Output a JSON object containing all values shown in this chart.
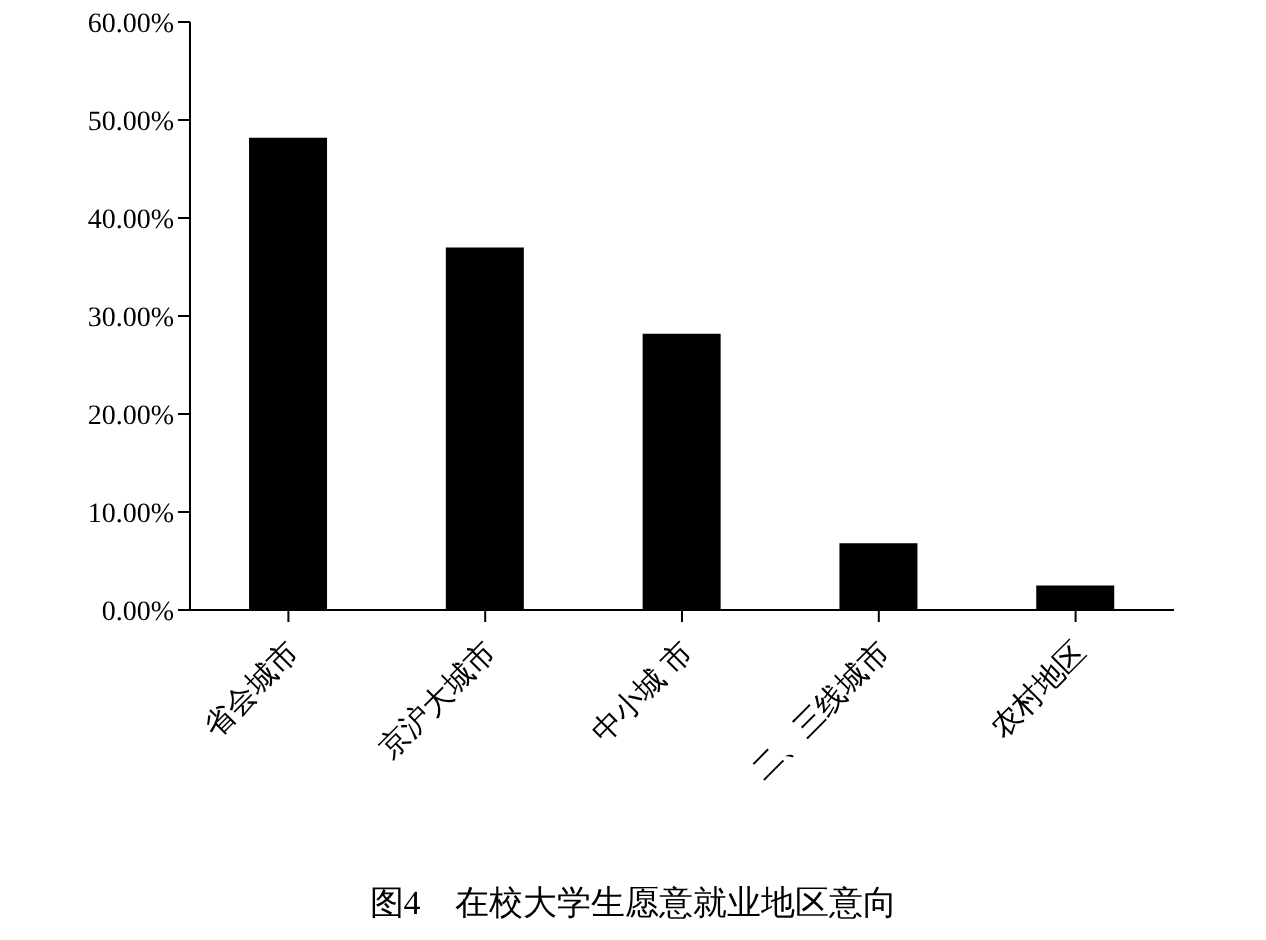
{
  "chart_data": {
    "type": "bar",
    "title": "图4　在校大学生愿意就业地区意向",
    "categories": [
      "省会城市",
      "京沪大城市",
      "中小城 市",
      "二、三线城市",
      "农村地区"
    ],
    "values": [
      48.2,
      37.0,
      28.2,
      6.8,
      2.5
    ],
    "color": "#000000",
    "ylim": [
      0,
      60
    ],
    "yticks": [
      {
        "value": 0,
        "label": "0.00%"
      },
      {
        "value": 10,
        "label": "10.00%"
      },
      {
        "value": 20,
        "label": "20.00%"
      },
      {
        "value": 30,
        "label": "30.00%"
      },
      {
        "value": 40,
        "label": "40.00%"
      },
      {
        "value": 50,
        "label": "50.00%"
      },
      {
        "value": 60,
        "label": "60.00%"
      }
    ],
    "grid": false,
    "legend": false
  }
}
